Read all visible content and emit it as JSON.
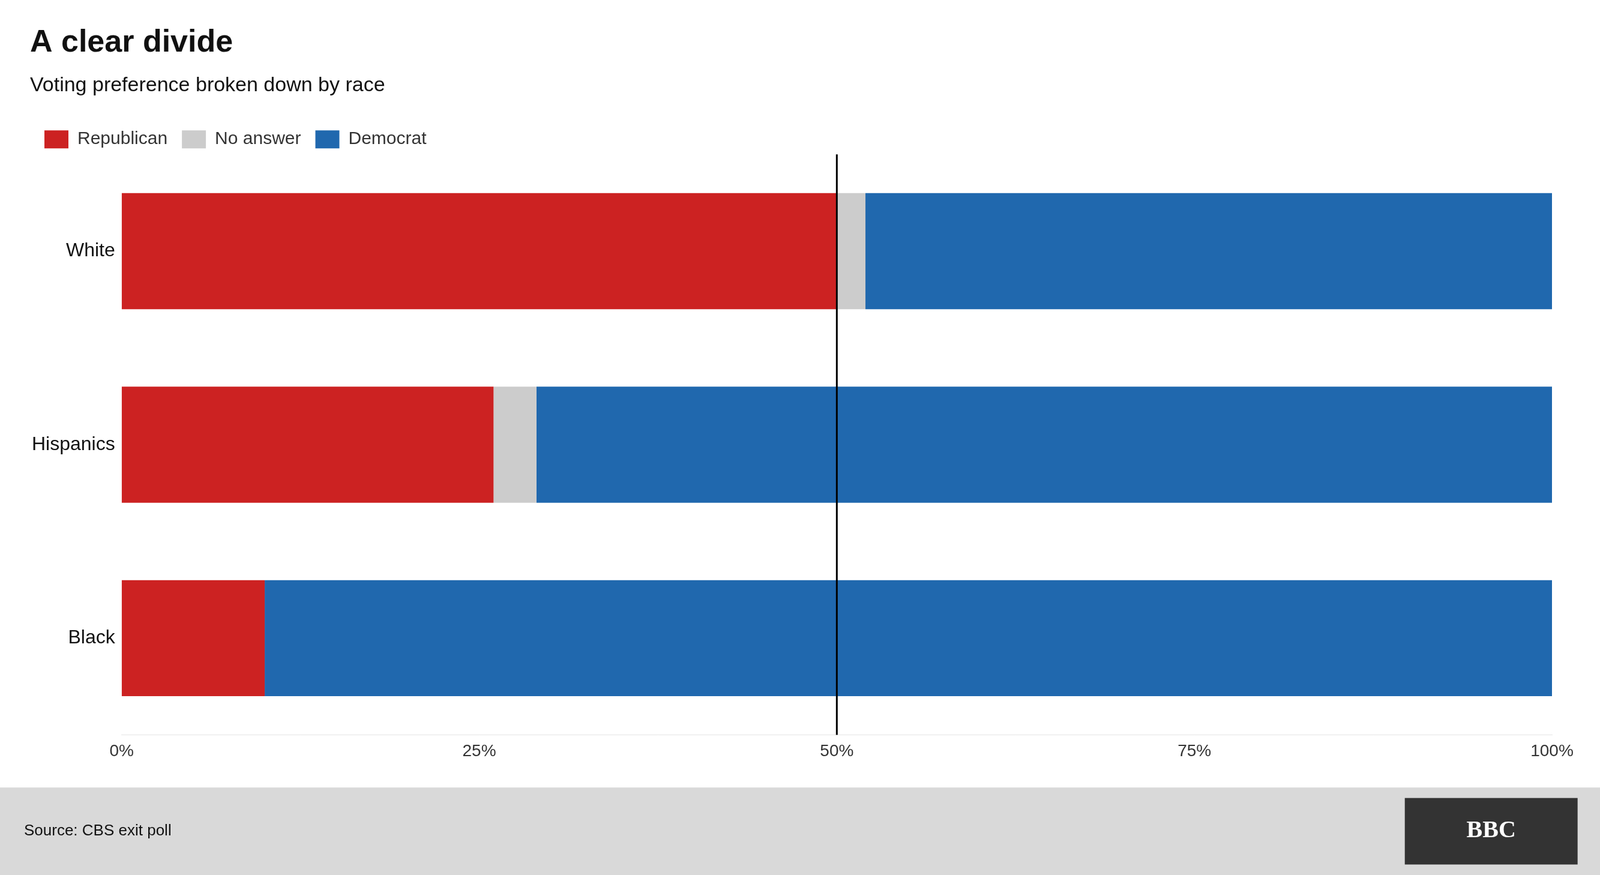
{
  "chart_data": {
    "type": "bar",
    "title": "A clear divide",
    "subtitle": "Voting preference broken down by race",
    "annotations": [
      "Source: CBS exit poll",
      "BBC"
    ],
    "orientation": "horizontal",
    "stacked": true,
    "categories": [
      "White",
      "Hispanics",
      "Black"
    ],
    "series": [
      {
        "name": "Republican",
        "color": "#cc2222",
        "values": [
          50,
          26,
          10
        ]
      },
      {
        "name": "No answer",
        "color": "#cccccc",
        "values": [
          2,
          3,
          0
        ]
      },
      {
        "name": "Democrat",
        "color": "#2068ae",
        "values": [
          48,
          71,
          90
        ]
      }
    ],
    "vline": 50,
    "xlim": [
      0,
      100
    ],
    "xticks": [
      {
        "value": 0,
        "label": "0%"
      },
      {
        "value": 25,
        "label": "25%"
      },
      {
        "value": 50,
        "label": "50%"
      },
      {
        "value": 75,
        "label": "75%"
      },
      {
        "value": 100,
        "label": "100%"
      }
    ],
    "grid": false,
    "legend": "upper left"
  }
}
